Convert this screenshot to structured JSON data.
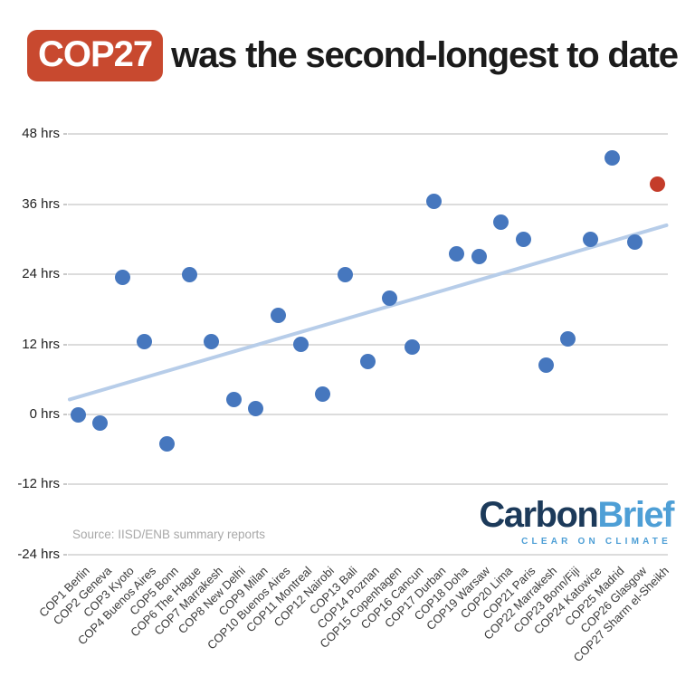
{
  "header": {
    "badge": "COP27",
    "title_rest": "was the second-longest to date",
    "badge_color": "#c8492f",
    "badge_text_color": "#ffffff"
  },
  "chart_data": {
    "type": "scatter",
    "title": "COP27 was the second-longest to date",
    "xlabel": "",
    "ylabel": "",
    "grid": true,
    "legend": false,
    "ylim": [
      -27,
      51
    ],
    "y_ticks": [
      {
        "value": 48,
        "label": "48 hrs"
      },
      {
        "value": 36,
        "label": "36 hrs"
      },
      {
        "value": 24,
        "label": "24 hrs"
      },
      {
        "value": 12,
        "label": "12 hrs"
      },
      {
        "value": 0,
        "label": "0 hrs"
      },
      {
        "value": -12,
        "label": "-12 hrs"
      },
      {
        "value": -24,
        "label": "-24 hrs"
      }
    ],
    "categories": [
      "COP1 Berlin",
      "COP2 Geneva",
      "COP3 Kyoto",
      "COP4 Buenos Aires",
      "COP5 Bonn",
      "COP6 The Hague",
      "COP7 Marrakesh",
      "COP8 New Delhi",
      "COP9 Milan",
      "COP10 Buenos Aires",
      "COP11 Montreal",
      "COP12 Nairobi",
      "COP13 Bali",
      "COP14 Poznan",
      "COP15 Copenhagen",
      "COP16 Cancun",
      "COP17 Durban",
      "COP18 Doha",
      "COP19 Warsaw",
      "COP20 Lima",
      "COP21 Paris",
      "COP22 Marrakesh",
      "COP23 Bonn/Fiji",
      "COP24 Katowice",
      "COP25 Madrid",
      "COP26 Glasgow",
      "COP27 Sharm el-Sheikh"
    ],
    "values": [
      0,
      -1.5,
      23.5,
      12.5,
      -5,
      24,
      12.5,
      2.5,
      1,
      17,
      12,
      3.5,
      24,
      9,
      20,
      11.5,
      36.5,
      27.5,
      27,
      33,
      30,
      8.5,
      13,
      30,
      44,
      29.5,
      39.5
    ],
    "units": "hrs",
    "highlight_index": 26,
    "point_color": "#4677be",
    "highlight_color": "#c43c2a",
    "trend": {
      "start_value": 2.5,
      "end_value": 32.5,
      "color": "#b7cde9"
    }
  },
  "source": {
    "text": "Source: IISD/ENB summary reports"
  },
  "logo": {
    "part1": "Carbon",
    "part2": "Brief",
    "tagline": "CLEAR ON CLIMATE",
    "color1": "#1c3a5a",
    "color2": "#4e9fd6"
  }
}
